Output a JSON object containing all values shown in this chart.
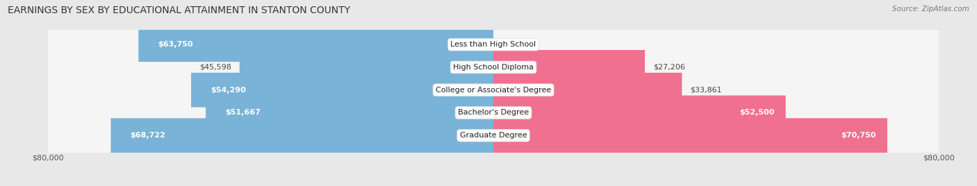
{
  "title": "EARNINGS BY SEX BY EDUCATIONAL ATTAINMENT IN STANTON COUNTY",
  "source": "Source: ZipAtlas.com",
  "categories": [
    "Less than High School",
    "High School Diploma",
    "College or Associate's Degree",
    "Bachelor's Degree",
    "Graduate Degree"
  ],
  "male_values": [
    63750,
    45598,
    54290,
    51667,
    68722
  ],
  "female_values": [
    0,
    27206,
    33861,
    52500,
    70750
  ],
  "male_label_inside": [
    true,
    false,
    true,
    true,
    true
  ],
  "female_label_inside": [
    false,
    false,
    false,
    true,
    true
  ],
  "male_color": "#7ab3d8",
  "female_color": "#f07090",
  "male_color_light": "#aecde8",
  "female_color_light": "#f7a8bc",
  "bg_color": "#e8e8e8",
  "row_bg_color": "#f5f5f5",
  "max_value": 80000,
  "title_fontsize": 10,
  "tick_label": "$80,000",
  "label_fontsize": 8,
  "cat_fontsize": 8
}
